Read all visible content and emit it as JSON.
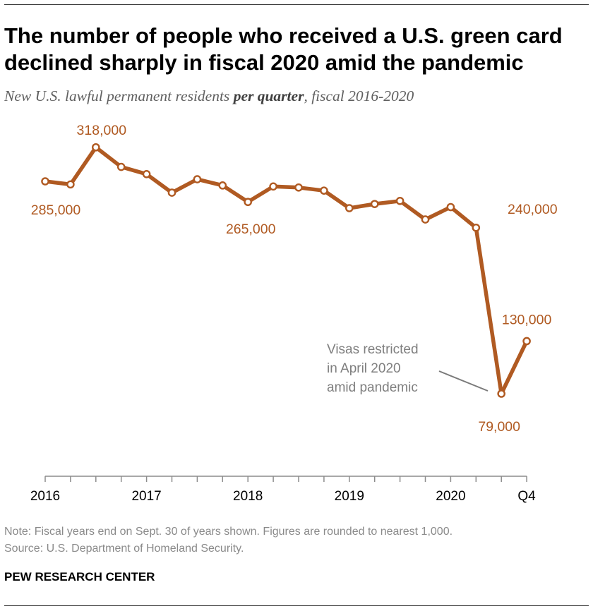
{
  "title": "The number of people who received a U.S. green card declined sharply in fiscal 2020 amid the pandemic",
  "subtitle": {
    "pre": "New U.S. lawful permanent residents ",
    "bold": "per quarter",
    "post": ", fiscal 2016-2020"
  },
  "chart_data": {
    "type": "line",
    "title": "The number of people who received a U.S. green card declined sharply in fiscal 2020 amid the pandemic",
    "subtitle": "New U.S. lawful permanent residents per quarter, fiscal 2016-2020",
    "xlabel": "",
    "ylabel": "",
    "series_color": "#b05a22",
    "ylim": [
      60000,
      330000
    ],
    "grid": false,
    "x_ticks": [
      {
        "index": 0,
        "label": "2016"
      },
      {
        "index": 4,
        "label": "2017"
      },
      {
        "index": 8,
        "label": "2018"
      },
      {
        "index": 12,
        "label": "2019"
      },
      {
        "index": 16,
        "label": "2020"
      },
      {
        "index": 19,
        "label": "Q4"
      }
    ],
    "values": [
      285000,
      282000,
      318000,
      299000,
      292000,
      274000,
      287000,
      281000,
      265000,
      280000,
      279000,
      276000,
      259000,
      263000,
      266000,
      248000,
      260000,
      240000,
      79000,
      130000
    ],
    "data_labels": [
      {
        "index": 0,
        "text": "285,000"
      },
      {
        "index": 2,
        "text": "318,000"
      },
      {
        "index": 8,
        "text": "265,000"
      },
      {
        "index": 17,
        "text": "240,000"
      },
      {
        "index": 18,
        "text": "79,000"
      },
      {
        "index": 19,
        "text": "130,000"
      }
    ],
    "annotation": {
      "lines": [
        "Visas restricted",
        "in April 2020",
        "amid pandemic"
      ],
      "points_to_index": 18
    }
  },
  "footer": {
    "note": "Note: Fiscal years end on Sept. 30 of years shown. Figures are rounded to nearest 1,000.",
    "source": "Source: U.S. Department of Homeland Security.",
    "brand": "PEW RESEARCH CENTER"
  }
}
